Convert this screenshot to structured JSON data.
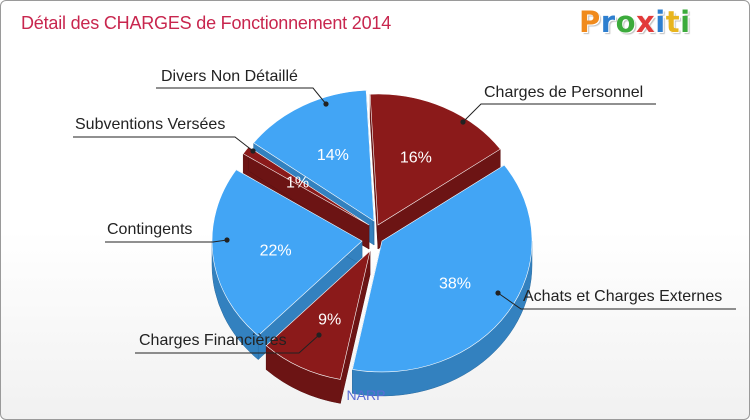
{
  "chart_data": {
    "type": "pie",
    "title": "Détail des CHARGES de Fonctionnement 2014",
    "caption": "NARP",
    "slices": [
      {
        "label": "Charges de Personnel",
        "value": 16,
        "pct": "16%",
        "color": "#8b1a1a"
      },
      {
        "label": "Achats et Charges Externes",
        "value": 38,
        "pct": "38%",
        "color": "#42a5f5"
      },
      {
        "label": "Charges Financières",
        "value": 9,
        "pct": "9%",
        "color": "#8b1a1a"
      },
      {
        "label": "Contingents",
        "value": 22,
        "pct": "22%",
        "color": "#42a5f5"
      },
      {
        "label": "Subventions Versées",
        "value": 1,
        "pct": "1%",
        "color": "#8b1a1a"
      },
      {
        "label": "Divers Non Détaillé",
        "value": 14,
        "pct": "14%",
        "color": "#42a5f5"
      }
    ]
  },
  "logo": {
    "letters": [
      "P",
      "r",
      "o",
      "x",
      "i",
      "t",
      "i"
    ],
    "colors": [
      "#f08a1c",
      "#2e7fcf",
      "#3cab3c",
      "#e23a3a",
      "#2e7fcf",
      "#e8b51e",
      "#3cab3c"
    ]
  }
}
